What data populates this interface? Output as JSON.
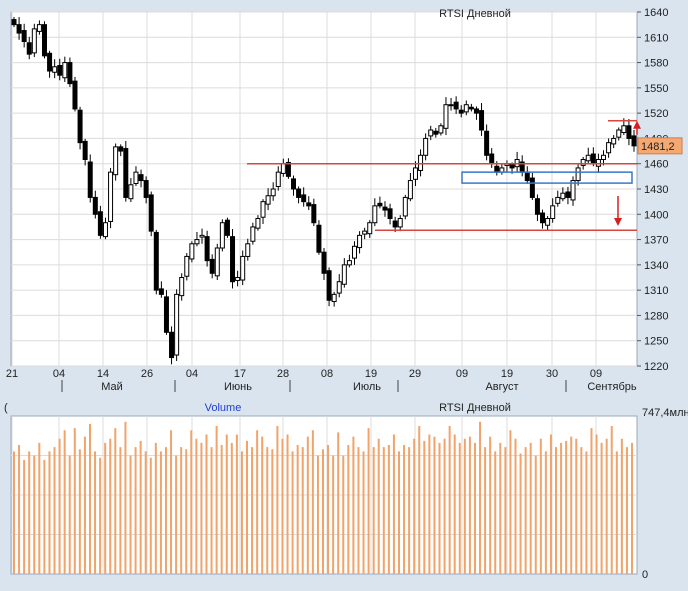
{
  "chart_data": [
    {
      "type": "candlestick",
      "title": "RTSI Дневной",
      "ylim": [
        1220,
        1640
      ],
      "y_ticks": [
        1220,
        1250,
        1280,
        1310,
        1340,
        1370,
        1400,
        1430,
        1460,
        1490,
        1520,
        1550,
        1580,
        1610,
        1640
      ],
      "x_day_labels": [
        "21",
        "04",
        "14",
        "26",
        "04",
        "17",
        "28",
        "08",
        "19",
        "29",
        "09",
        "19",
        "30",
        "09"
      ],
      "x_month_labels": [
        "Май",
        "Июнь",
        "Июль",
        "Август",
        "Сентябрь"
      ],
      "last_price_label": "1481,2",
      "annotations": {
        "upper_level": 1460,
        "lower_level": 1381,
        "box": [
          1450,
          1437
        ],
        "recent_high": 1511
      },
      "closes": [
        1625,
        1615,
        1605,
        1590,
        1620,
        1625,
        1588,
        1570,
        1575,
        1565,
        1580,
        1555,
        1525,
        1485,
        1465,
        1420,
        1400,
        1375,
        1390,
        1450,
        1480,
        1475,
        1420,
        1435,
        1450,
        1440,
        1420,
        1380,
        1310,
        1305,
        1260,
        1230,
        1305,
        1325,
        1350,
        1365,
        1370,
        1375,
        1345,
        1330,
        1360,
        1390,
        1375,
        1320,
        1325,
        1350,
        1365,
        1385,
        1395,
        1415,
        1422,
        1430,
        1450,
        1460,
        1445,
        1430,
        1420,
        1415,
        1410,
        1390,
        1355,
        1330,
        1298,
        1305,
        1320,
        1340,
        1345,
        1362,
        1375,
        1380,
        1390,
        1410,
        1410,
        1405,
        1395,
        1385,
        1395,
        1420,
        1440,
        1455,
        1470,
        1490,
        1500,
        1495,
        1505,
        1530,
        1530,
        1525,
        1520,
        1530,
        1525,
        1520,
        1500,
        1470,
        1460,
        1450,
        1455,
        1460,
        1455,
        1465,
        1450,
        1440,
        1420,
        1400,
        1390,
        1395,
        1410,
        1420,
        1425,
        1420,
        1440,
        1455,
        1465,
        1470,
        1460,
        1465,
        1470,
        1485,
        1490,
        1500,
        1505,
        1490,
        1481.2
      ],
      "volume": {
        "title": "RTSI Дневной",
        "series_label": "Volume",
        "y_max_label": "747,4млн",
        "y_min_label": "0",
        "values": [
          580,
          610,
          540,
          580,
          560,
          620,
          540,
          580,
          600,
          640,
          680,
          560,
          690,
          590,
          650,
          710,
          580,
          550,
          620,
          640,
          690,
          600,
          720,
          560,
          600,
          630,
          580,
          550,
          620,
          580,
          600,
          680,
          560,
          600,
          590,
          680,
          640,
          620,
          660,
          600,
          700,
          610,
          660,
          620,
          660,
          580,
          630,
          600,
          680,
          650,
          600,
          590,
          700,
          640,
          660,
          580,
          610,
          600,
          650,
          680,
          560,
          590,
          610,
          560,
          670,
          560,
          610,
          650,
          600,
          580,
          690,
          600,
          640,
          600,
          610,
          660,
          580,
          610,
          600,
          640,
          700,
          630,
          660,
          650,
          620,
          640,
          700,
          660,
          620,
          640,
          650,
          620,
          720,
          600,
          650,
          580,
          620,
          600,
          680,
          640,
          570,
          600,
          620,
          560,
          640,
          580,
          660,
          600,
          620,
          630,
          650,
          640,
          600,
          580,
          690,
          660,
          620,
          640,
          700,
          580,
          640,
          600,
          620
        ]
      }
    }
  ],
  "colors": {
    "background": "#d9e4ef",
    "panel": "#ffffff",
    "grid": "#dcdcdc",
    "candle": "#000000",
    "level_line": "#d6463c",
    "box": "#3a78c8",
    "arrow": "#d62020",
    "volume_bar": "#f0a36a",
    "price_tag": "#f4a872",
    "volume_label": "#1f3fcf"
  }
}
